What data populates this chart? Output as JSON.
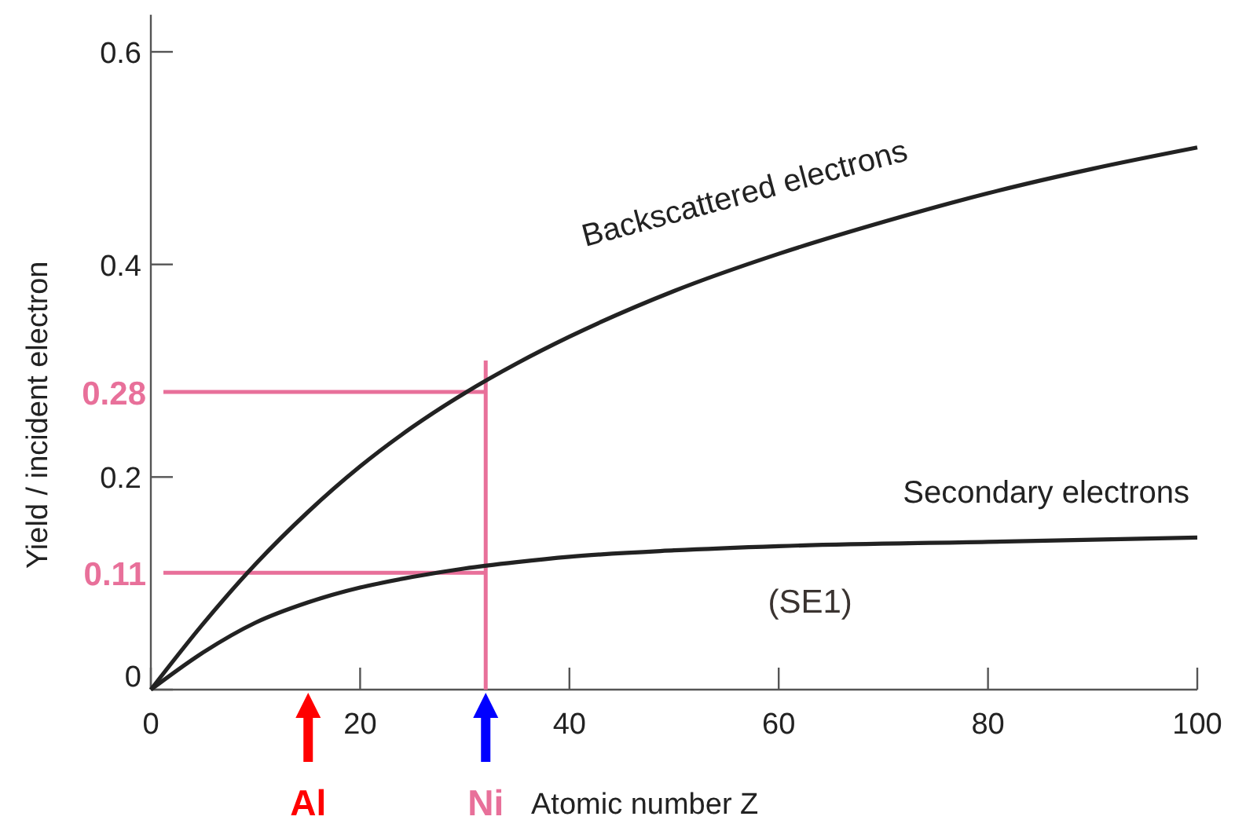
{
  "chart_data": {
    "type": "line",
    "xlabel": "Atomic number Z",
    "ylabel": "Yield / incident electron",
    "xlim": [
      0,
      100
    ],
    "ylim": [
      0,
      0.635
    ],
    "xticks": [
      0,
      20,
      40,
      60,
      80,
      100
    ],
    "yticks": [
      0,
      0.2,
      0.4,
      0.6
    ],
    "grid": false,
    "marker": "none",
    "line_style": "solid",
    "series": [
      {
        "name": "Backscattered electrons",
        "color": "#222222",
        "x": [
          0,
          5,
          10,
          15,
          20,
          25,
          30,
          35,
          40,
          50,
          60,
          70,
          80,
          90,
          100
        ],
        "values": [
          0,
          0.062,
          0.118,
          0.167,
          0.21,
          0.247,
          0.279,
          0.307,
          0.332,
          0.375,
          0.41,
          0.44,
          0.467,
          0.49,
          0.51
        ]
      },
      {
        "name": "Secondary electrons",
        "color": "#222222",
        "x": [
          0,
          5,
          10,
          15,
          20,
          25,
          30,
          35,
          40,
          50,
          60,
          80,
          100
        ],
        "values": [
          0,
          0.035,
          0.063,
          0.082,
          0.096,
          0.106,
          0.114,
          0.12,
          0.125,
          0.131,
          0.135,
          0.139,
          0.143
        ]
      }
    ],
    "ref_lines": [
      {
        "axis": "y",
        "value": 0.28,
        "label": "0.28",
        "color": "#e8709a"
      },
      {
        "axis": "y",
        "value": 0.11,
        "label": "0.11",
        "color": "#e8709a"
      },
      {
        "axis": "x",
        "value": 32,
        "label": null,
        "color": "#e8709a"
      }
    ],
    "annotations": [
      "Al",
      "Ni",
      "(SE1)"
    ]
  }
}
